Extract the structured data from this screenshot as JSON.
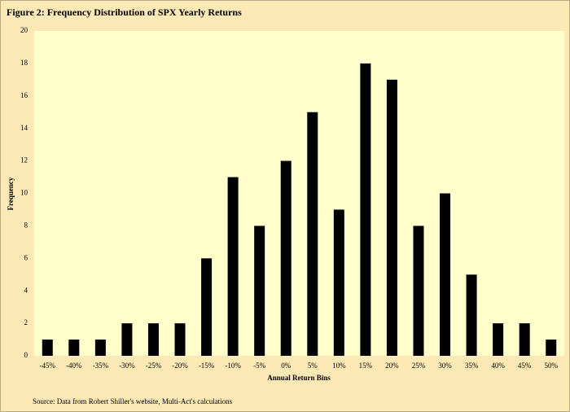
{
  "chart_data": {
    "type": "bar",
    "title": "Figure 2: Frequency  Distribution  of SPX Yearly  Returns",
    "x_label": "Annual Return Bins",
    "y_label": "Frequency",
    "source": "Source:  Data from Robert Shiller's  website, Multi-Act's calculations",
    "categories": [
      "-45%",
      "-40%",
      "-35%",
      "-30%",
      "-25%",
      "-20%",
      "-15%",
      "-10%",
      "-5%",
      "0%",
      "5%",
      "10%",
      "15%",
      "20%",
      "25%",
      "30%",
      "35%",
      "40%",
      "45%",
      "50%"
    ],
    "values": [
      1,
      1,
      1,
      2,
      2,
      2,
      6,
      11,
      8,
      12,
      15,
      9,
      18,
      17,
      8,
      10,
      5,
      2,
      2,
      1
    ],
    "color": "#000000",
    "ylim": [
      0,
      20
    ],
    "yticks": [
      0,
      2,
      4,
      6,
      8,
      10,
      12,
      14,
      16,
      18,
      20
    ],
    "grid": false
  }
}
